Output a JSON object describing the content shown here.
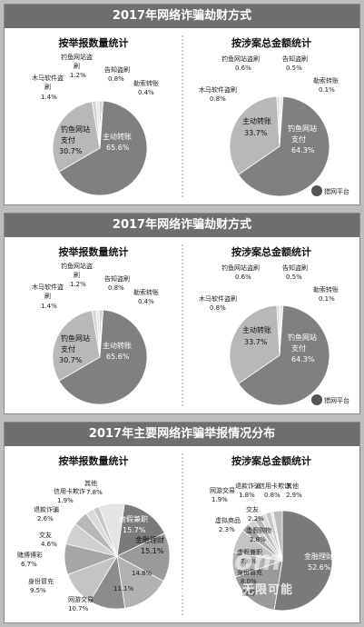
{
  "panel1": {
    "banner": "2017年网络诈骗劫财方式",
    "footer": "猎网平台",
    "left": {
      "title": "按举报数量统计",
      "labels": [
        "钓鱼网站盗",
        "刷",
        "1.2%",
        "告知盗刷",
        "0.8%",
        "勒索转账",
        "0.4%",
        "木马软件盗",
        "刷",
        "1.4%",
        "钓鱼网站",
        "支付",
        "30.7%",
        "主动转账",
        "65.6%"
      ]
    },
    "right": {
      "title": "按涉案总金额统计",
      "labels": [
        "钓鱼网站盗刷",
        "0.6%",
        "告知盗刷",
        "0.5%",
        "勒索转账",
        "0.1%",
        "木马软件盗刷",
        "0.8%",
        "主动转账",
        "33.7%",
        "钓鱼网站",
        "支付",
        "64.3%"
      ]
    }
  },
  "panel2": {
    "banner": "2017年网络诈骗劫财方式",
    "footer": "猎网平台",
    "left": {
      "title": "按举报数量统计",
      "labels": [
        "钓鱼网站盗",
        "刷",
        "1.2%",
        "告知盗刷",
        "0.8%",
        "勒索转账",
        "0.4%",
        "木马软件盗",
        "刷",
        "1.4%",
        "钓鱼网站",
        "支付",
        "30.7%",
        "主动转账",
        "65.6%"
      ]
    },
    "right": {
      "title": "按涉案总金额统计",
      "labels": [
        "钓鱼网站盗刷",
        "0.6%",
        "告知盗刷",
        "0.5%",
        "勒索转账",
        "0.1%",
        "木马软件盗刷",
        "0.8%",
        "主动转账",
        "33.7%",
        "钓鱼网站",
        "支付",
        "64.3%"
      ]
    }
  },
  "panel3": {
    "banner": "2017年主要网络诈骗举报情况分布",
    "watermark_top": "com",
    "watermark": "客商世界@无限可能",
    "left": {
      "title": "按举报数量统计",
      "labels": [
        "其他",
        "7.8%",
        "信用卡欺诈",
        "1.9%",
        "退款诈骗",
        "2.6%",
        "交友",
        "4.6%",
        "赌博博彩",
        "6.7%",
        "身份冒充",
        "9.5%",
        "网游交易",
        "10.7%",
        "虚假兼职",
        "15.7%",
        "金融理财",
        "15.1%",
        "14.8%",
        "11.1%"
      ]
    },
    "right": {
      "title": "按涉案总金额统计",
      "labels": [
        "网游交易",
        "1.9%",
        "退款诈骗",
        "1.8%",
        "信用卡欺诈",
        "0.8%",
        "其他",
        "2.9%",
        "交友",
        "2.2%",
        "虚拟商品",
        "2.3%",
        "虚假购物",
        "2.8%",
        "虚假兼职",
        "7.6%",
        "身份冒充",
        "8.0%",
        "赌博",
        "金融理财",
        "52.6%"
      ]
    }
  },
  "chart_data": [
    {
      "type": "pie",
      "title": "按举报数量统计",
      "categories": [
        "主动转账",
        "钓鱼网站支付",
        "木马软件盗刷",
        "钓鱼网站盗刷",
        "告知盗刷",
        "勒索转账"
      ],
      "values": [
        65.6,
        30.7,
        1.4,
        1.2,
        0.8,
        0.4
      ],
      "colors": [
        "#808080",
        "#b8b8b8",
        "#d4d4d4",
        "#e6e6e6",
        "#c6c6c6",
        "#9c9c9c"
      ]
    },
    {
      "type": "pie",
      "title": "按涉案总金额统计",
      "categories": [
        "钓鱼网站支付",
        "主动转账",
        "木马软件盗刷",
        "钓鱼网站盗刷",
        "告知盗刷",
        "勒索转账"
      ],
      "values": [
        64.3,
        33.7,
        0.8,
        0.6,
        0.5,
        0.1
      ],
      "colors": [
        "#808080",
        "#b8b8b8",
        "#d4d4d4",
        "#e6e6e6",
        "#c6c6c6",
        "#9c9c9c"
      ]
    },
    {
      "type": "pie",
      "title": "按举报数量统计",
      "categories": [
        "虚假兼职",
        "金融理财",
        "",
        "",
        "网游交易",
        "身份冒充",
        "赌博博彩",
        "交友",
        "退款诈骗",
        "信用卡欺诈",
        "其他"
      ],
      "values": [
        15.7,
        15.1,
        14.8,
        11.1,
        10.7,
        9.5,
        6.7,
        4.6,
        2.6,
        1.9,
        7.8
      ],
      "colors": [
        "#7a7a7a",
        "#9a9a9a",
        "#b2b2b2",
        "#8c8c8c",
        "#c4c4c4",
        "#a6a6a6",
        "#d0d0d0",
        "#b8b8b8",
        "#dadada",
        "#c8c8c8",
        "#e4e4e4"
      ]
    },
    {
      "type": "pie",
      "title": "按涉案总金额统计",
      "categories": [
        "金融理财",
        "赌博",
        "身份冒充",
        "虚假兼职",
        "虚假购物",
        "虚拟商品",
        "交友",
        "网游交易",
        "退款诈骗",
        "信用卡欺诈",
        "其他"
      ],
      "values": [
        52.6,
        17.1,
        8.0,
        7.6,
        2.8,
        2.3,
        2.2,
        1.9,
        1.8,
        0.8,
        2.9
      ],
      "colors": [
        "#7a7a7a",
        "#9a9a9a",
        "#b2b2b2",
        "#c4c4c4",
        "#a6a6a6",
        "#d0d0d0",
        "#b8b8b8",
        "#dadada",
        "#c8c8c8",
        "#e4e4e4",
        "#bcbcbc"
      ]
    }
  ]
}
